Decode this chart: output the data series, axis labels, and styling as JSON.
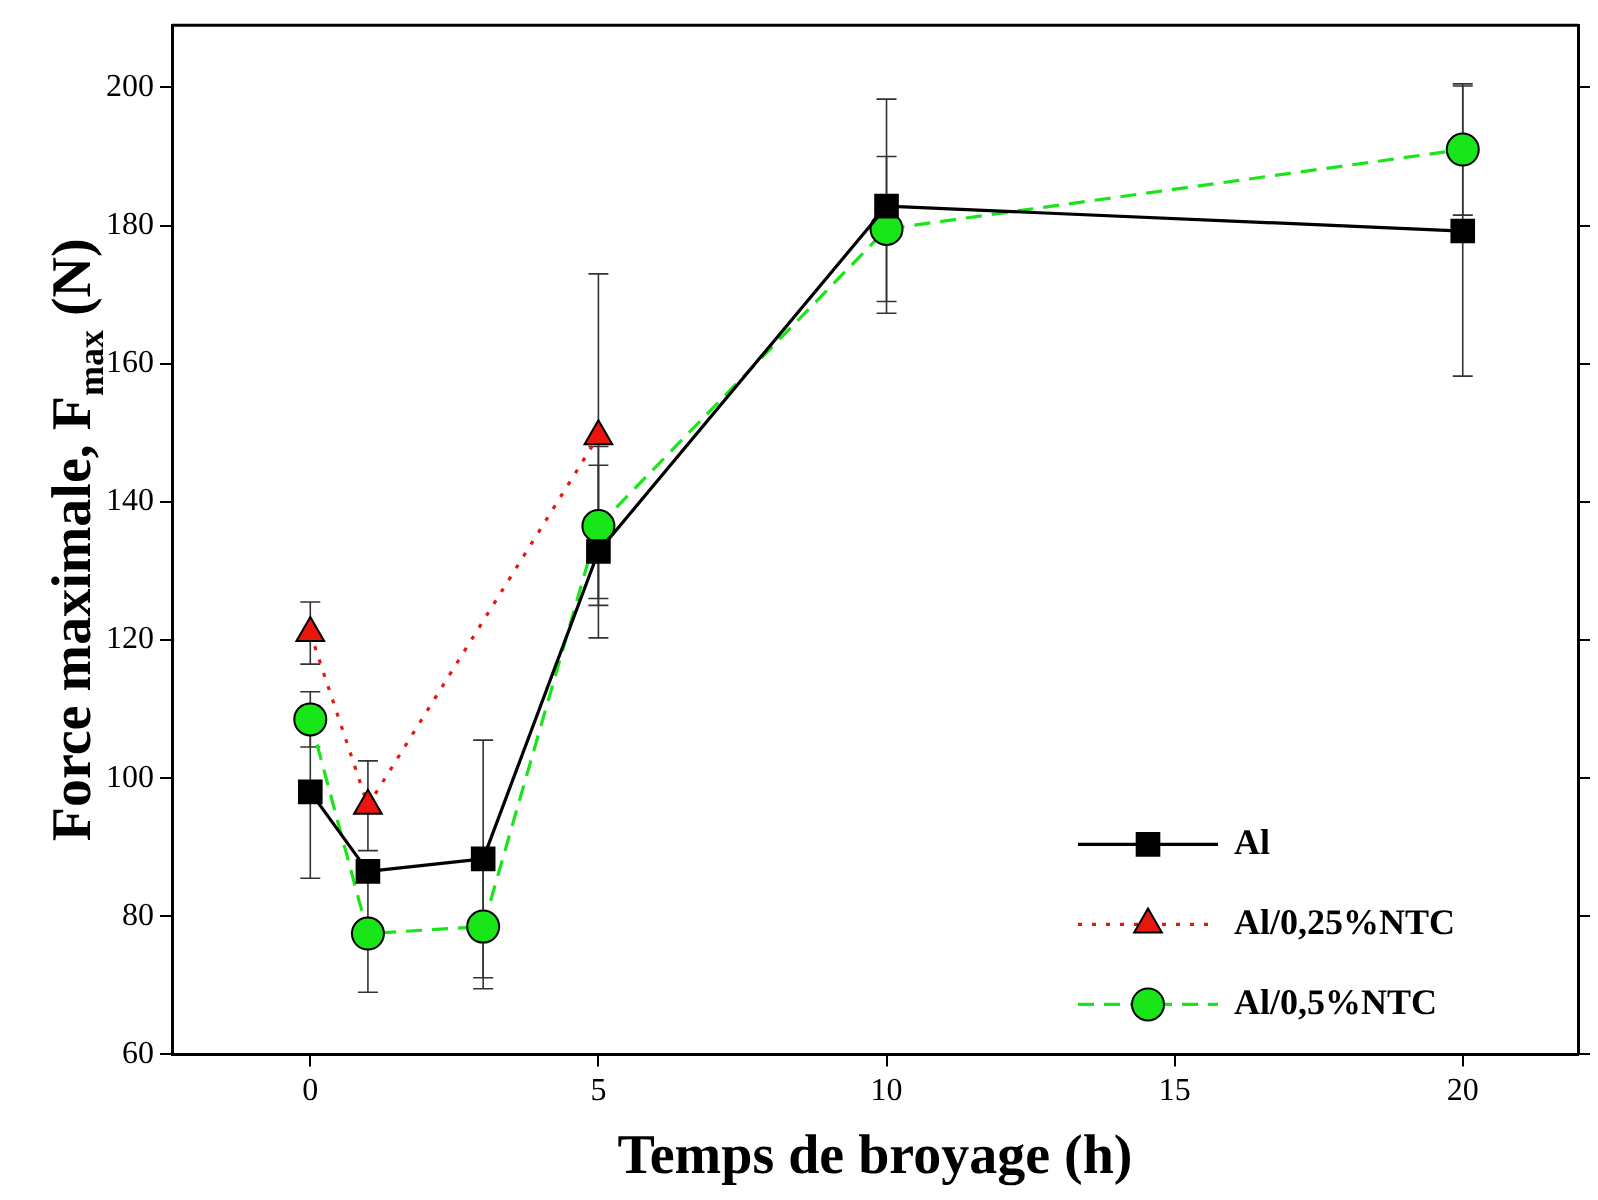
{
  "chart_data": {
    "type": "line",
    "xlabel": "Temps de broyage (h)",
    "ylabel": "Force maximale, F$_{max}$ (N)",
    "xlim": [
      -2.4,
      22
    ],
    "xticks": [
      0,
      5,
      10,
      15,
      20
    ],
    "ylim": [
      60,
      209
    ],
    "yticks": [
      60,
      80,
      100,
      120,
      140,
      160,
      180,
      200
    ],
    "grid": false,
    "legend": "bottom right",
    "series": [
      {
        "name": "Al",
        "color": "#000000",
        "marker": "square",
        "line_style": "solid",
        "x": [
          0,
          1,
          3,
          5,
          10,
          20
        ],
        "values": [
          98,
          86.5,
          88.3,
          132.8,
          182.8,
          179.2
        ],
        "errors": [
          12.5,
          null,
          17.2,
          12.5,
          15.5,
          21
        ]
      },
      {
        "name": "Al/0,25%NTC",
        "color": "#e8160c",
        "marker": "triangle",
        "line_style": "dotted",
        "x": [
          0,
          1,
          5
        ],
        "values": [
          121,
          96,
          149.5
        ],
        "errors": [
          4.5,
          6.5,
          23.5
        ]
      },
      {
        "name": "Al/0,5%NTC",
        "color": "#19e619",
        "marker": "circle",
        "line_style": "dashed",
        "x": [
          0,
          1,
          3,
          5,
          10,
          20
        ],
        "values": [
          108.5,
          77.5,
          78.5,
          136.5,
          179.5,
          191
        ],
        "errors": [
          4,
          8.5,
          9,
          11.5,
          10.5,
          9.5
        ]
      }
    ]
  }
}
